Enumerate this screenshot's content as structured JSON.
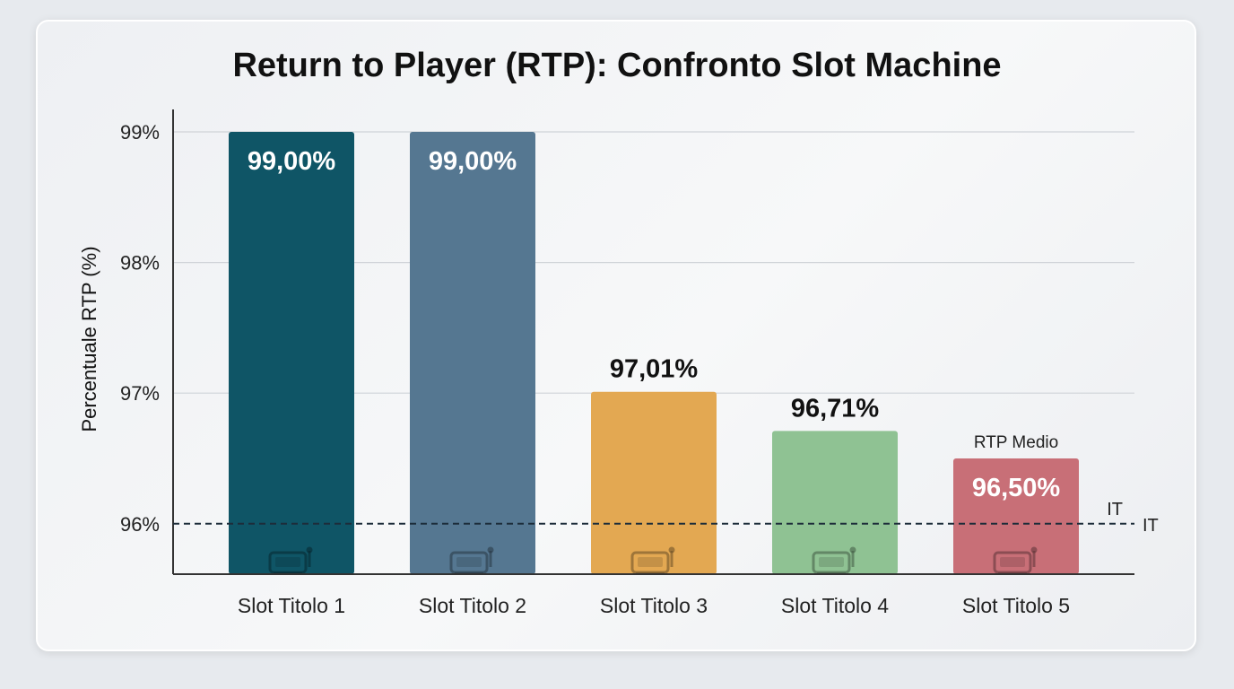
{
  "chart_data": {
    "type": "bar",
    "title": "Return to Player (RTP): Confronto Slot Machine",
    "ylabel": "Percentuale RTP (%)",
    "xlabel": "",
    "ylim": [
      95.6,
      99.2
    ],
    "yticks": [
      96,
      97,
      98,
      99
    ],
    "ytick_labels": [
      "96%",
      "97%",
      "98%",
      "99%"
    ],
    "categories": [
      "Slot Titolo 1",
      "Slot Titolo 2",
      "Slot Titolo 3",
      "Slot Titolo 4",
      "Slot Titolo 5"
    ],
    "values": [
      99.0,
      99.0,
      97.01,
      96.71,
      96.5
    ],
    "value_labels": [
      "99,00%",
      "99,00%",
      "97,01%",
      "96,71%",
      "96,50%"
    ],
    "colors": [
      "#0f5566",
      "#557791",
      "#e3a852",
      "#8fc293",
      "#c86f77"
    ],
    "label_colors": [
      "#ffffff",
      "#ffffff",
      "#111111",
      "#111111",
      "#ffffff"
    ],
    "bar_icons": [
      "slot-machine-icon",
      "slot-machine-icon",
      "slot-machine-icon",
      "slot-machine-icon",
      "slot-machine-icon"
    ],
    "annotation": {
      "category": "Slot Titolo 5",
      "text": "RTP Medio"
    },
    "reference_line": {
      "value": 96,
      "style": "dashed",
      "label": "IT",
      "label2": "IT"
    },
    "grid": true,
    "legend": "none"
  }
}
